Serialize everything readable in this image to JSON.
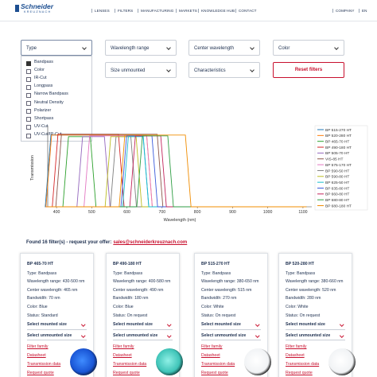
{
  "header": {
    "logo": "Schneider",
    "logo_sub": "KREUZNACH",
    "nav": [
      "LENSES",
      "FILTERS",
      "MANUFACTURING",
      "MARKETS",
      "KNOWLEDGE HUB",
      "CONTACT"
    ],
    "right": [
      "COMPANY",
      "EN"
    ]
  },
  "filters": {
    "dropdowns": [
      "Type",
      "Wavelength range",
      "Center wavelength",
      "Color",
      "Size unmounted",
      "Characteristics"
    ],
    "reset": "Reset filters",
    "type_options": [
      "Bandpass",
      "Color",
      "IR-Cut",
      "Longpass",
      "Narrow Bandpass",
      "Neutral Density",
      "Polarizer",
      "Shortpass",
      "UV-Cut",
      "UV-Cut/IR-Cut"
    ]
  },
  "chart_data": {
    "type": "line",
    "xlabel": "Wavelength (nm)",
    "ylabel": "Transmission",
    "xlim": [
      375,
      1125
    ],
    "xticks": [
      400,
      500,
      600,
      700,
      800,
      900,
      1000,
      1100
    ],
    "ylim": [
      0,
      1
    ],
    "series": [
      {
        "name": "BP 515-270 HT",
        "color": "#1f77b4",
        "x": [
          375,
          368,
          384,
          646,
          662,
          1110
        ],
        "values": [
          0,
          0,
          0.92,
          0.92,
          0,
          0
        ]
      },
      {
        "name": "BP 520-280 HT",
        "color": "#ff7f0e",
        "x": [
          375,
          370,
          386,
          656,
          672,
          1110
        ],
        "values": [
          0,
          0,
          0.92,
          0.92,
          0,
          0
        ]
      },
      {
        "name": "BP 465-70 HT",
        "color": "#2ca02c",
        "x": [
          375,
          418,
          434,
          496,
          512,
          1110
        ],
        "values": [
          0,
          0,
          0.9,
          0.9,
          0,
          0
        ]
      },
      {
        "name": "BP 490-180 HT",
        "color": "#d62728",
        "x": [
          375,
          388,
          404,
          576,
          592,
          1110
        ],
        "values": [
          0,
          0,
          0.93,
          0.93,
          0,
          0
        ]
      },
      {
        "name": "BP 505-70 HT",
        "color": "#9467bd",
        "x": [
          375,
          458,
          474,
          536,
          552,
          1110
        ],
        "values": [
          0,
          0,
          0.9,
          0.9,
          0,
          0
        ]
      },
      {
        "name": "VIS-85 HT",
        "color": "#8c564b",
        "x": [
          375,
          398,
          414,
          686,
          702,
          1110
        ],
        "values": [
          0,
          0,
          0.93,
          0.93,
          0,
          0
        ]
      },
      {
        "name": "BP 575-170 HT",
        "color": "#e377c2",
        "x": [
          375,
          478,
          494,
          656,
          672,
          1110
        ],
        "values": [
          0,
          0,
          0.91,
          0.91,
          0,
          0
        ]
      },
      {
        "name": "BP 590-50 HT",
        "color": "#7f7f7f",
        "x": [
          375,
          553,
          569,
          611,
          627,
          1110
        ],
        "values": [
          0,
          0,
          0.9,
          0.9,
          0,
          0
        ]
      },
      {
        "name": "BP 590-80 HT",
        "color": "#bcbd22",
        "x": [
          375,
          538,
          554,
          626,
          642,
          1110
        ],
        "values": [
          0,
          0,
          0.9,
          0.9,
          0,
          0
        ]
      },
      {
        "name": "BP 625-50 HT",
        "color": "#17becf",
        "x": [
          375,
          588,
          604,
          646,
          662,
          1110
        ],
        "values": [
          0,
          0,
          0.9,
          0.9,
          0,
          0
        ]
      },
      {
        "name": "BP 635-80 HT",
        "color": "#3b5bdb",
        "x": [
          375,
          583,
          599,
          671,
          687,
          1110
        ],
        "values": [
          0,
          0,
          0.91,
          0.91,
          0,
          0
        ]
      },
      {
        "name": "BP 660-80 HT",
        "color": "#c2255c",
        "x": [
          375,
          608,
          624,
          696,
          712,
          1110
        ],
        "values": [
          0,
          0,
          0.91,
          0.91,
          0,
          0
        ]
      },
      {
        "name": "BP 680-80 HT",
        "color": "#2f9e44",
        "x": [
          375,
          628,
          644,
          716,
          732,
          1110
        ],
        "values": [
          0,
          0,
          0.91,
          0.91,
          0,
          0
        ]
      },
      {
        "name": "BP 680-180 HT",
        "color": "#f08c00",
        "x": [
          375,
          578,
          594,
          766,
          782,
          1110
        ],
        "values": [
          0,
          0,
          0.92,
          0.92,
          0,
          0
        ]
      }
    ]
  },
  "results": {
    "found": "Found 16 filter(s) - request your offer:",
    "email": "sales@schneiderkreuznach.com"
  },
  "products": [
    {
      "name": "BP 465-70 HT",
      "lines": [
        "Type: Bandpass",
        "Wavelength range: 430-500 nm",
        "Center wavelength: 465 nm",
        "Bandwidth: 70 nm",
        "Color: Blue",
        "Status: Standard"
      ],
      "mounted": "Select mounted size",
      "unmounted": "Select unmounted size",
      "links": [
        "Filter family",
        "Datasheet",
        "Transmission data",
        "Request quote"
      ]
    },
    {
      "name": "BP 490-180 HT",
      "lines": [
        "Type: Bandpass",
        "Wavelength range: 400-580 nm",
        "Center wavelength: 490 nm",
        "Bandwidth: 180 nm",
        "Color: Blue",
        "Status: On request"
      ],
      "mounted": "Select mounted size",
      "unmounted": "Select unmounted size",
      "links": [
        "Filter family",
        "Datasheet",
        "Transmission data",
        "Request quote"
      ]
    },
    {
      "name": "BP 515-270 HT",
      "lines": [
        "Type: Bandpass",
        "Wavelength range: 380-650 nm",
        "Center wavelength: 515 nm",
        "Bandwidth: 270 nm",
        "Color: White",
        "Status: On request"
      ],
      "mounted": "Select mounted size",
      "unmounted": "Select unmounted size",
      "links": [
        "Filter family",
        "Datasheet",
        "Transmission data",
        "Request quote"
      ]
    },
    {
      "name": "BP 520-280 HT",
      "lines": [
        "Type: Bandpass",
        "Wavelength range: 380-660 nm",
        "Center wavelength: 520 nm",
        "Bandwidth: 280 nm",
        "Color: White",
        "Status: On request"
      ],
      "mounted": "Select mounted size",
      "unmounted": "Select unmounted size",
      "links": [
        "Filter family",
        "Datasheet",
        "Transmission data",
        "Request quote"
      ]
    }
  ]
}
